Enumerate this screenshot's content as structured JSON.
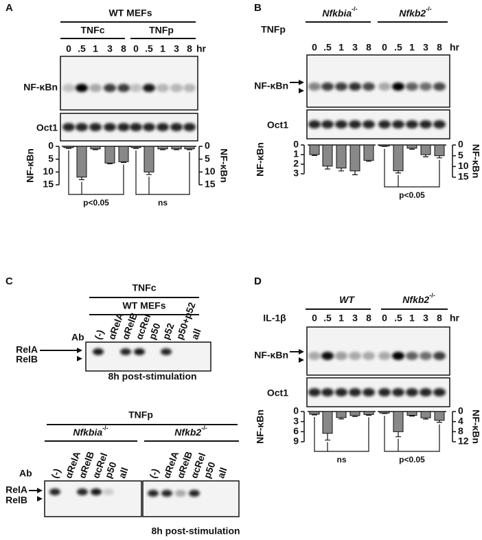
{
  "panels": {
    "A": {
      "label": "A",
      "title": "WT MEFs",
      "groups": [
        "TNFc",
        "TNFp"
      ],
      "lanes": [
        "0",
        ".5",
        "1",
        "3",
        "8"
      ],
      "unit": "hr",
      "rows": [
        "NF-κBn",
        "Oct1"
      ],
      "bars": {
        "ylabel": "NF-κBn",
        "left": {
          "ylim": [
            0,
            15
          ],
          "yticks": [
            0,
            5,
            10,
            15
          ],
          "values": [
            0.5,
            12,
            1,
            6.5,
            6
          ],
          "errors": [
            0.3,
            1,
            0.3,
            0.3,
            0.3
          ],
          "stat": "p<0.05"
        },
        "right": {
          "ylim": [
            0,
            15
          ],
          "yticks": [
            0,
            5,
            10,
            15
          ],
          "values": [
            0.5,
            10,
            1,
            1,
            1
          ],
          "errors": [
            0.3,
            1,
            0.3,
            0.3,
            0.3
          ],
          "stat": "ns"
        }
      }
    },
    "B": {
      "label": "B",
      "stimulus": "TNFp",
      "groups": [
        {
          "name": "Nfkbia",
          "sup": "-/-"
        },
        {
          "name": "Nfkb2",
          "sup": "-/-"
        }
      ],
      "lanes": [
        "0",
        ".5",
        "1",
        "3",
        "8"
      ],
      "unit": "hr",
      "rows": [
        "NF-κBn",
        "Oct1"
      ],
      "bars": {
        "ylabel": "NF-κBn",
        "left": {
          "ylim": [
            0,
            3
          ],
          "yticks": [
            0,
            1,
            2,
            3
          ],
          "values": [
            1,
            2.2,
            2.4,
            2.7,
            1.6
          ],
          "errors": [
            0.1,
            0.3,
            0.3,
            0.4,
            0.1
          ]
        },
        "right": {
          "ylim": [
            0,
            15
          ],
          "yticks": [
            0,
            5,
            10,
            15
          ],
          "values": [
            0.5,
            12,
            1.5,
            4.5,
            5
          ],
          "errors": [
            0.2,
            1,
            0.5,
            1,
            1
          ],
          "stat": "p<0.05"
        }
      }
    },
    "C": {
      "label": "C",
      "top": {
        "stimulus": "TNFc",
        "cells": "WT MEFs",
        "ab_label": "Ab",
        "antibodies": [
          "(-)",
          "αRelA",
          "αRelB",
          "αcRel",
          "p50",
          "p52",
          "p50+p52",
          "all"
        ],
        "bands": [
          "RelA",
          "RelB"
        ],
        "caption": "8h post-stimulation"
      },
      "bottom": {
        "stimulus": "TNFp",
        "groups": [
          {
            "name": "Nfkbia",
            "sup": "-/-"
          },
          {
            "name": "Nfkb2",
            "sup": "-/-"
          }
        ],
        "ab_label": "Ab",
        "antibodies": [
          "(-)",
          "αRelA",
          "αRelB",
          "αcRel",
          "p50",
          "all"
        ],
        "bands": [
          "RelA",
          "RelB"
        ],
        "caption": "8h post-stimulation"
      }
    },
    "D": {
      "label": "D",
      "stimulus": "IL-1β",
      "groups": [
        {
          "name": "WT"
        },
        {
          "name": "Nfkb2",
          "sup": "-/-"
        }
      ],
      "lanes": [
        "0",
        ".5",
        "1",
        "3",
        "8"
      ],
      "unit": "hr",
      "rows": [
        "NF-κBn",
        "Oct1"
      ],
      "bars": {
        "ylabel": "NF-κBn",
        "left": {
          "ylim": [
            0,
            9
          ],
          "yticks": [
            0,
            3,
            6,
            9
          ],
          "values": [
            0.8,
            6.5,
            1.8,
            1.2,
            0.9
          ],
          "errors": [
            0.2,
            2,
            0.4,
            0.3,
            0.2
          ],
          "stat": "ns"
        },
        "right": {
          "ylim": [
            0,
            12
          ],
          "yticks": [
            0,
            4,
            8,
            12
          ],
          "values": [
            0.6,
            8,
            1.5,
            2.5,
            3.5
          ],
          "errors": [
            0.2,
            2,
            0.3,
            0.5,
            0.8
          ],
          "stat": "p<0.05"
        }
      }
    }
  }
}
